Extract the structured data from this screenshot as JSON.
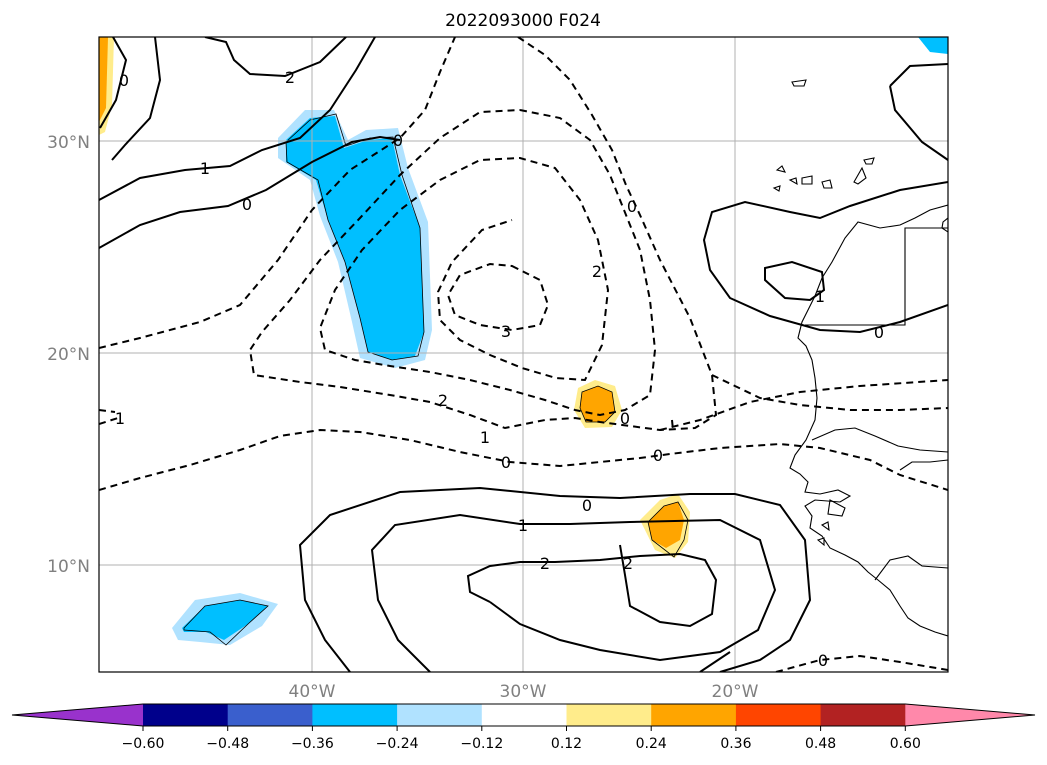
{
  "title": "2022093000 F024",
  "map": {
    "lat_labels": [
      "30°N",
      "20°N",
      "10°N"
    ],
    "lon_labels": [
      "40°W",
      "30°W",
      "20°W"
    ],
    "contour_labels": {
      "pos_top_2": "2",
      "pos_0_nw": "0",
      "pos_1_w": "1",
      "pos_0_w": "0",
      "pos_0_ridge": "0",
      "neg_0_center": "0",
      "neg_2_center": "2",
      "neg_3_center": "3",
      "neg_2_sw": "2",
      "neg_1_sw": "1",
      "neg_0_s": "0",
      "neg_1_w": "1",
      "neg_1_east": "1",
      "pos_0_east": "0",
      "pos_0_south": "0",
      "pos_1_south": "1",
      "pos_2_south": "2",
      "pos_2_south_e": "2",
      "neg_0_se": "0",
      "neg_0_small1": "0",
      "neg_0_small2": "0"
    }
  },
  "colorbar": {
    "ticks": [
      "−0.60",
      "−0.48",
      "−0.36",
      "−0.24",
      "−0.12",
      "0.12",
      "0.24",
      "0.36",
      "0.48",
      "0.60"
    ],
    "colors": [
      "#9932cc",
      "#00008b",
      "#3a5fcd",
      "#00bfff",
      "#b0e2ff",
      "#ffffff",
      "#ffec8b",
      "#ffa500",
      "#ff4500",
      "#b22222",
      "#ff88aa"
    ]
  }
}
